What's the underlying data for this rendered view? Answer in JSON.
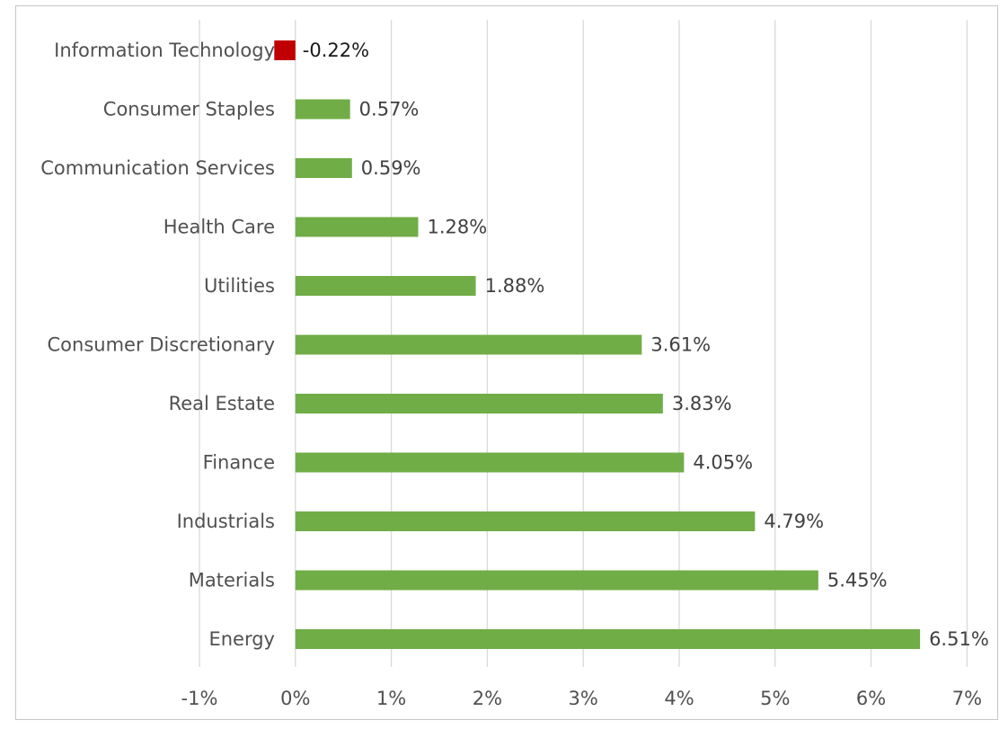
{
  "chart_data": {
    "type": "bar",
    "orientation": "horizontal",
    "title": "",
    "xlabel": "",
    "ylabel": "",
    "categories": [
      "Information Technology",
      "Consumer Staples",
      "Communication Services",
      "Health Care",
      "Utilities",
      "Consumer Discretionary",
      "Real Estate",
      "Finance",
      "Industrials",
      "Materials",
      "Energy"
    ],
    "values": [
      -0.22,
      0.57,
      0.59,
      1.28,
      1.88,
      3.61,
      3.83,
      4.05,
      4.79,
      5.45,
      6.51
    ],
    "data_labels": [
      "-0.22%",
      "0.57%",
      "0.59%",
      "1.28%",
      "1.88%",
      "3.61%",
      "3.83%",
      "4.05%",
      "4.79%",
      "5.45%",
      "6.51%"
    ],
    "xlim": [
      -1,
      7
    ],
    "x_ticks": [
      -1,
      0,
      1,
      2,
      3,
      4,
      5,
      6,
      7
    ],
    "x_tick_labels": [
      "-1%",
      "0%",
      "1%",
      "2%",
      "3%",
      "4%",
      "5%",
      "6%",
      "7%"
    ],
    "grid": "vertical",
    "legend": "none",
    "colors": {
      "positive": "#70ad47",
      "negative": "#c00000",
      "gridline": "#d9d9d9",
      "text": "#505050"
    }
  }
}
